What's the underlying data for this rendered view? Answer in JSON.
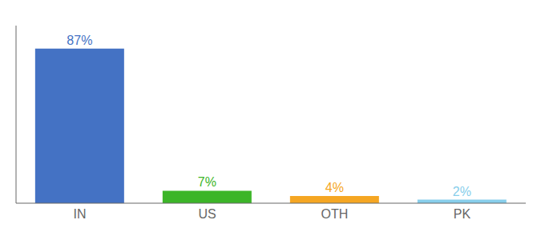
{
  "chart_data": {
    "type": "bar",
    "categories": [
      "IN",
      "US",
      "OTH",
      "PK"
    ],
    "values": [
      87,
      7,
      4,
      2
    ],
    "value_labels": [
      "87%",
      "7%",
      "4%",
      "2%"
    ],
    "data_labels": true,
    "colors": [
      "#4472C4",
      "#3CB528",
      "#F5A623",
      "#87CEEB"
    ],
    "ylim": [
      0,
      100
    ],
    "tick_labels": "x",
    "grid": false
  }
}
